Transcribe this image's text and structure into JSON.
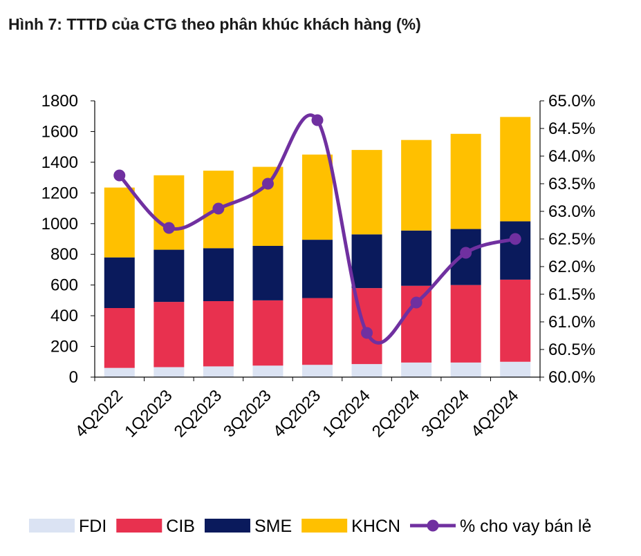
{
  "title": "Hình 7: TTTD của CTG theo phân khúc khách hàng (%)",
  "chart_data": {
    "type": "bar",
    "stacked": true,
    "categories": [
      "4Q2022",
      "1Q2023",
      "2Q2023",
      "3Q2023",
      "4Q2023",
      "1Q2024",
      "2Q2024",
      "3Q2024",
      "4Q2024"
    ],
    "series": [
      {
        "name": "FDI",
        "color": "#dbe3f3",
        "values": [
          60,
          65,
          70,
          75,
          80,
          85,
          95,
          95,
          100
        ]
      },
      {
        "name": "CIB",
        "color": "#e8314f",
        "values": [
          390,
          425,
          425,
          425,
          435,
          495,
          500,
          505,
          535
        ]
      },
      {
        "name": "SME",
        "color": "#0a1a5c",
        "values": [
          330,
          340,
          345,
          355,
          380,
          350,
          360,
          365,
          380
        ]
      },
      {
        "name": "KHCN",
        "color": "#ffc000",
        "values": [
          455,
          485,
          505,
          515,
          555,
          550,
          590,
          620,
          680
        ]
      }
    ],
    "line_series": {
      "name": "% cho vay bán lẻ",
      "color": "#7030a0",
      "values": [
        63.65,
        62.7,
        63.05,
        63.5,
        64.65,
        60.8,
        61.35,
        62.25,
        62.5
      ]
    },
    "y_left": {
      "min": 0,
      "max": 1800,
      "ticks": [
        "0",
        "200",
        "400",
        "600",
        "800",
        "1000",
        "1200",
        "1400",
        "1600",
        "1800"
      ]
    },
    "y_right": {
      "min": 60,
      "max": 65,
      "ticks": [
        "60.0%",
        "60.5%",
        "61.0%",
        "61.5%",
        "62.0%",
        "62.5%",
        "63.0%",
        "63.5%",
        "64.0%",
        "64.5%",
        "65.0%"
      ]
    },
    "legend_position": "bottom"
  }
}
